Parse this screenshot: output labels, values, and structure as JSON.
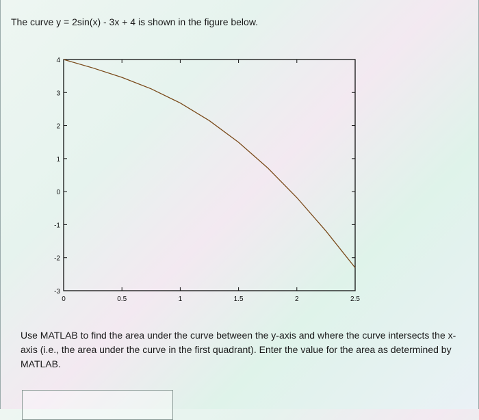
{
  "question_intro": "The curve y = 2sin(x) - 3x + 4 is shown in the figure below.",
  "question_body": "Use MATLAB to find the area under the curve between the y-axis and where the curve intersects the x-axis (i.e., the area under the curve in the first quadrant). Enter the value for the area as determined by MATLAB.",
  "answer_input": {
    "value": "",
    "placeholder": ""
  },
  "chart_data": {
    "type": "line",
    "title": "",
    "xlabel": "",
    "ylabel": "",
    "xlim": [
      0,
      2.5
    ],
    "ylim": [
      -3,
      4
    ],
    "grid": false,
    "x_ticks": [
      "0",
      "0.5",
      "1",
      "1.5",
      "2",
      "2.5"
    ],
    "y_ticks": [
      "4",
      "3",
      "2",
      "1",
      "0",
      "-1",
      "-2",
      "-3"
    ],
    "series": [
      {
        "color": "#7a4a1a",
        "x": [
          0,
          0.25,
          0.5,
          0.75,
          1,
          1.25,
          1.5,
          1.75,
          2,
          2.25,
          2.5
        ],
        "y": [
          4,
          3.745,
          3.459,
          3.113,
          2.683,
          2.148,
          1.495,
          0.718,
          -0.181,
          -1.194,
          -2.303
        ]
      }
    ]
  }
}
